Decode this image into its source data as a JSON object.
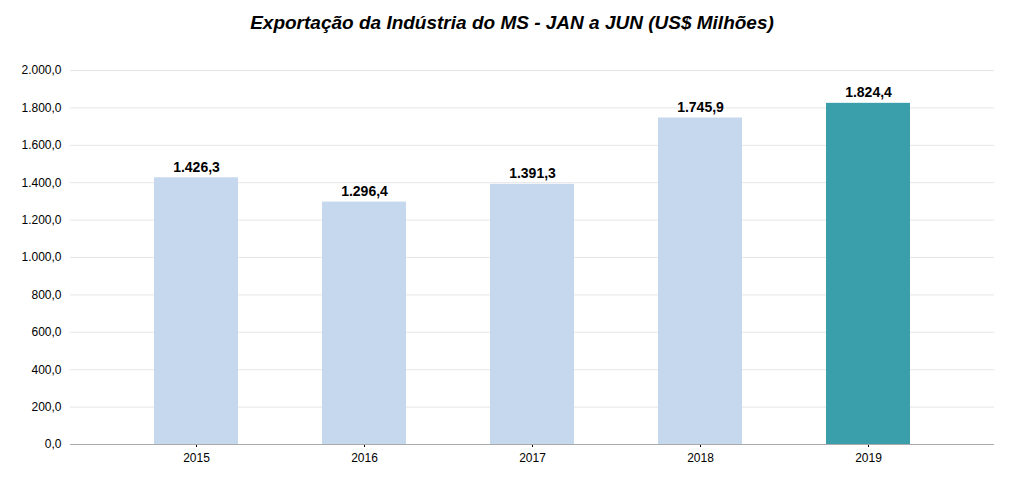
{
  "chart_data": {
    "type": "bar",
    "title": "Exportação da Indústria do MS - JAN a JUN (US$ Milhões)",
    "categories": [
      "2015",
      "2016",
      "2017",
      "2018",
      "2019"
    ],
    "values": [
      1426.3,
      1296.4,
      1391.3,
      1745.9,
      1824.4
    ],
    "value_labels": [
      "1.426,3",
      "1.296,4",
      "1.391,3",
      "1.745,9",
      "1.824,4"
    ],
    "data_labels": true,
    "colors": [
      "#c5d8ed",
      "#c5d8ed",
      "#c5d8ed",
      "#c5d8ed",
      "#3a9faa"
    ],
    "ylim": [
      0,
      2000
    ],
    "yticks": [
      {
        "value": 0,
        "label": "0,0"
      },
      {
        "value": 200,
        "label": "200,0"
      },
      {
        "value": 400,
        "label": "400,0"
      },
      {
        "value": 600,
        "label": "600,0"
      },
      {
        "value": 800,
        "label": "800,0"
      },
      {
        "value": 1000,
        "label": "1.000,0"
      },
      {
        "value": 1200,
        "label": "1.200,0"
      },
      {
        "value": 1400,
        "label": "1.400,0"
      },
      {
        "value": 1600,
        "label": "1.600,0"
      },
      {
        "value": 1800,
        "label": "1.800,0"
      },
      {
        "value": 2000,
        "label": "2.000,0"
      }
    ],
    "grid": true
  }
}
